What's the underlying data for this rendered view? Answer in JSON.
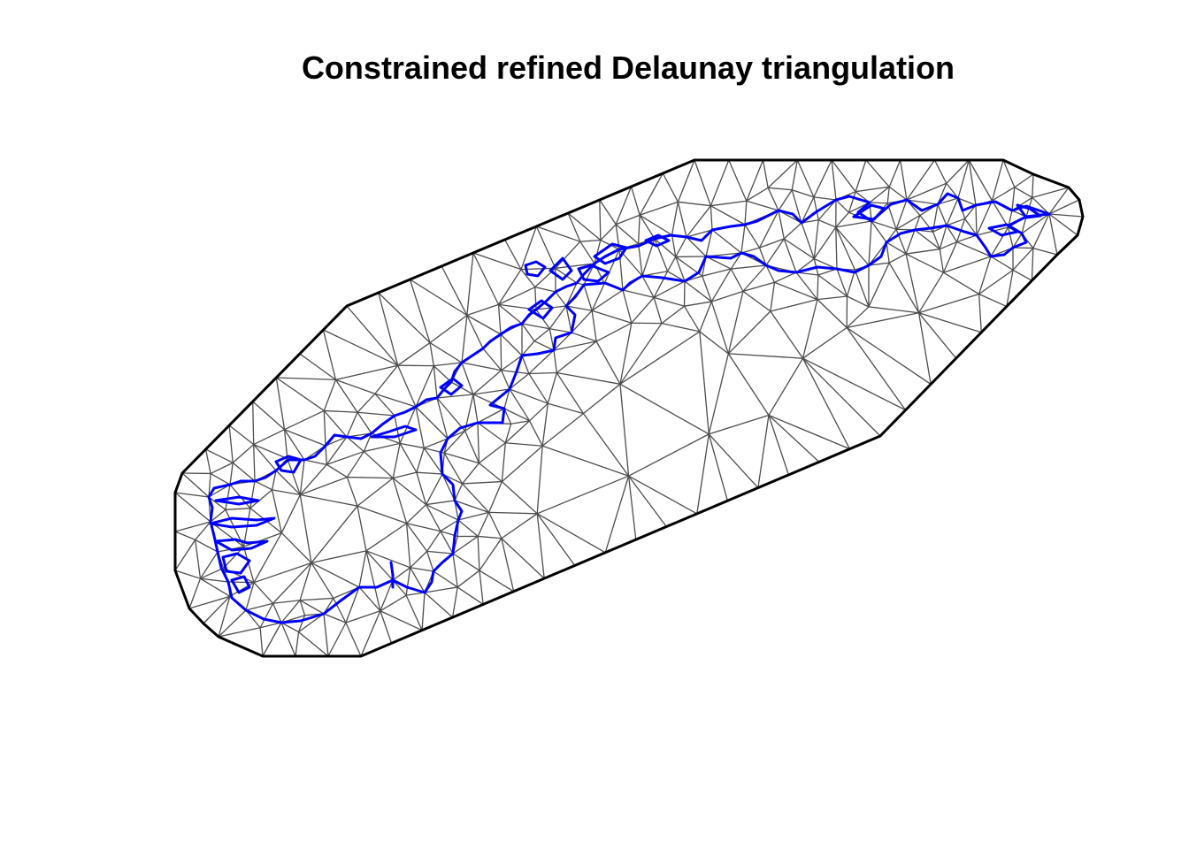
{
  "figure": {
    "title": "Constrained refined Delaunay triangulation",
    "colors": {
      "background": "#ffffff",
      "mesh_edges": "#4d4d4d",
      "outer_boundary": "#000000",
      "constraint_segments": "#0000ff",
      "title": "#000000"
    }
  }
}
